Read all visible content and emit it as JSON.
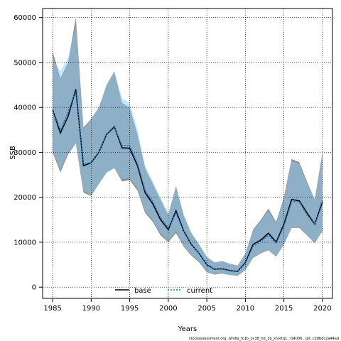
{
  "chart_data": {
    "type": "line",
    "xlabel": "Years",
    "ylabel": "SSB",
    "xlim": [
      1983.7,
      2021.3
    ],
    "ylim": [
      -2500,
      62000
    ],
    "x_ticks": [
      1985,
      1990,
      1995,
      2000,
      2005,
      2010,
      2015,
      2020
    ],
    "y_ticks": [
      0,
      10000,
      20000,
      30000,
      40000,
      50000,
      60000
    ],
    "grid": true,
    "legend_position": "bottom-center",
    "footnote": "stockassessment.org, whi6a_fc1b_ov38_hd_1b_shortq1, r14006 , git: c28bdc2a44ad",
    "x": [
      1985,
      1986,
      1987,
      1988,
      1989,
      1990,
      1991,
      1992,
      1993,
      1994,
      1995,
      1996,
      1997,
      1998,
      1999,
      2000,
      2001,
      2002,
      2003,
      2004,
      2005,
      2006,
      2007,
      2008,
      2009,
      2010,
      2011,
      2012,
      2013,
      2014,
      2015,
      2016,
      2017,
      2018,
      2019,
      2020
    ],
    "series": [
      {
        "name": "base",
        "color": "#000000",
        "band_color": "#808080",
        "values": [
          39500,
          34300,
          38000,
          44000,
          27000,
          27700,
          30000,
          34000,
          35700,
          31000,
          30900,
          27000,
          21000,
          18500,
          15000,
          12800,
          17000,
          12500,
          9500,
          7500,
          5000,
          4000,
          4100,
          3700,
          3500,
          5500,
          9500,
          10500,
          12000,
          10000,
          14000,
          19500,
          19200,
          16500,
          14000,
          19000
        ],
        "lower": [
          30000,
          25500,
          29500,
          32000,
          21000,
          20300,
          23000,
          25500,
          26500,
          23500,
          23800,
          21500,
          16500,
          14500,
          11500,
          10000,
          12000,
          9000,
          7000,
          5500,
          3300,
          2800,
          3000,
          2700,
          2500,
          3800,
          6500,
          7500,
          8200,
          6800,
          9500,
          13200,
          13200,
          11500,
          9800,
          12500
        ],
        "upper": [
          52500,
          46500,
          50000,
          60000,
          35500,
          37500,
          40000,
          45000,
          48000,
          41000,
          40000,
          34000,
          26500,
          23000,
          19500,
          16000,
          22500,
          16000,
          12000,
          9500,
          6700,
          5500,
          5800,
          5200,
          4800,
          7500,
          12800,
          15000,
          17500,
          14500,
          20000,
          28500,
          27800,
          23500,
          19500,
          30000
        ]
      },
      {
        "name": "current",
        "color": "#1874cd",
        "band_color": "#87cefa",
        "values": [
          39500,
          35000,
          39000,
          43500,
          27500,
          27700,
          30000,
          34000,
          35500,
          31500,
          31500,
          27500,
          21500,
          19000,
          15500,
          13200,
          16500,
          12500,
          9500,
          7500,
          5000,
          4000,
          4100,
          3700,
          3500,
          5500,
          9000,
          10200,
          11500,
          9800,
          13500,
          19000,
          19000,
          16000,
          14000,
          19500
        ],
        "lower": [
          30500,
          26000,
          30000,
          32000,
          21500,
          20500,
          23000,
          25500,
          26500,
          24000,
          24300,
          22000,
          17000,
          14800,
          12000,
          10300,
          12500,
          9200,
          7200,
          5700,
          3400,
          2900,
          3000,
          2700,
          2500,
          3900,
          6600,
          7600,
          8300,
          6900,
          9600,
          13400,
          13400,
          11600,
          9900,
          12700
        ],
        "upper": [
          51000,
          48000,
          51000,
          58000,
          35000,
          37500,
          40000,
          45000,
          48000,
          42000,
          41000,
          35000,
          27000,
          23500,
          19800,
          16500,
          22500,
          16000,
          12000,
          9500,
          6700,
          5500,
          5800,
          5200,
          4800,
          7500,
          12600,
          14800,
          17000,
          14200,
          19500,
          28000,
          27500,
          23200,
          19500,
          29500
        ]
      }
    ]
  }
}
